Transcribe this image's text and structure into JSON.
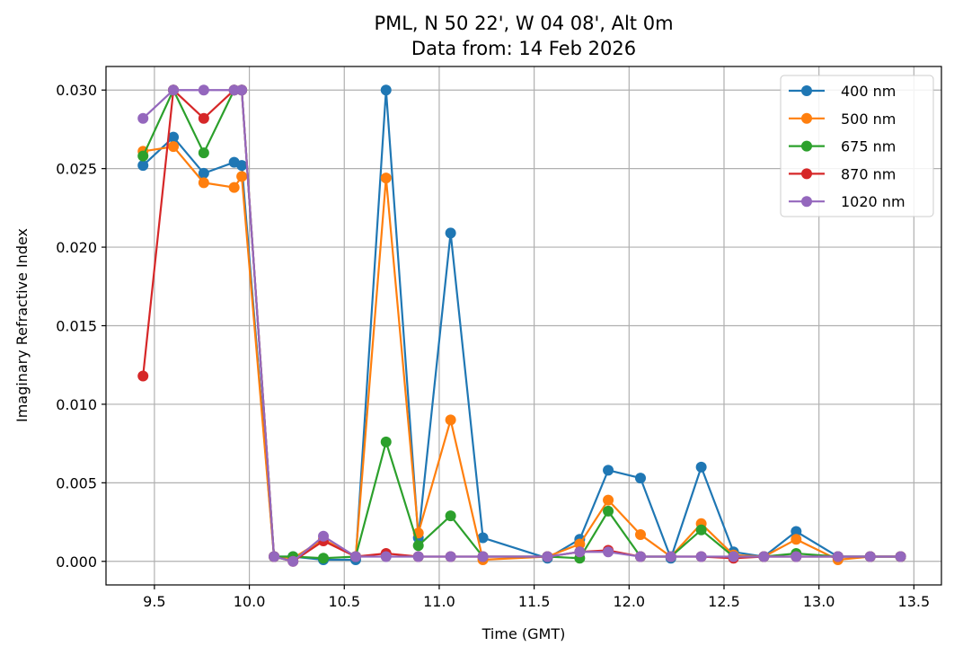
{
  "chart_data": {
    "type": "line",
    "title": "PML, N 50 22', W 04 08', Alt 0m",
    "subtitle": "Data from: 14 Feb 2026",
    "xlabel": "Time (GMT)",
    "ylabel": "Imaginary Refractive Index",
    "xlim": [
      9.245,
      13.645
    ],
    "ylim": [
      -0.0015,
      0.0315
    ],
    "xticks": [
      "9.5",
      "10.0",
      "10.5",
      "11.0",
      "11.5",
      "12.0",
      "12.5",
      "13.0",
      "13.5"
    ],
    "yticks": [
      "0.000",
      "0.005",
      "0.010",
      "0.015",
      "0.020",
      "0.025",
      "0.030"
    ],
    "grid": true,
    "legend_position": "top-right",
    "series": [
      {
        "name": "400 nm",
        "color": "#1f77b4",
        "points": [
          [
            9.44,
            0.0252
          ],
          [
            9.6,
            0.027
          ],
          [
            9.76,
            0.0247
          ],
          [
            9.92,
            0.0254
          ],
          [
            9.96,
            0.0252
          ],
          [
            10.13,
            0.0003
          ],
          [
            10.23,
            0.0003
          ],
          [
            10.39,
            0.0001
          ],
          [
            10.56,
            0.0001
          ],
          [
            10.72,
            0.03
          ],
          [
            10.89,
            0.0015
          ],
          [
            11.06,
            0.0209
          ],
          [
            11.23,
            0.0015
          ],
          [
            11.57,
            0.0002
          ],
          [
            11.74,
            0.0014
          ],
          [
            11.89,
            0.0058
          ],
          [
            12.06,
            0.0053
          ],
          [
            12.22,
            0.0002
          ],
          [
            12.38,
            0.006
          ],
          [
            12.55,
            0.0006
          ],
          [
            12.71,
            0.0003
          ],
          [
            12.88,
            0.0019
          ],
          [
            13.1,
            0.0003
          ],
          [
            13.27,
            0.0003
          ],
          [
            13.43,
            0.0003
          ]
        ]
      },
      {
        "name": "500 nm",
        "color": "#ff7f0e",
        "points": [
          [
            9.44,
            0.0261
          ],
          [
            9.6,
            0.0264
          ],
          [
            9.76,
            0.0241
          ],
          [
            9.92,
            0.0238
          ],
          [
            9.96,
            0.0245
          ],
          [
            10.13,
            0.0003
          ],
          [
            10.23,
            0.0002
          ],
          [
            10.39,
            0.0014
          ],
          [
            10.56,
            0.0003
          ],
          [
            10.72,
            0.0244
          ],
          [
            10.89,
            0.0018
          ],
          [
            11.06,
            0.009
          ],
          [
            11.23,
            0.0001
          ],
          [
            11.57,
            0.0003
          ],
          [
            11.74,
            0.0011
          ],
          [
            11.89,
            0.0039
          ],
          [
            12.06,
            0.0017
          ],
          [
            12.22,
            0.0003
          ],
          [
            12.38,
            0.0024
          ],
          [
            12.55,
            0.0004
          ],
          [
            12.71,
            0.0003
          ],
          [
            12.88,
            0.0014
          ],
          [
            13.1,
            0.0001
          ],
          [
            13.27,
            0.0003
          ],
          [
            13.43,
            0.0003
          ]
        ]
      },
      {
        "name": "675 nm",
        "color": "#2ca02c",
        "points": [
          [
            9.44,
            0.0258
          ],
          [
            9.6,
            0.03
          ],
          [
            9.76,
            0.026
          ],
          [
            9.92,
            0.03
          ],
          [
            9.96,
            0.03
          ],
          [
            10.13,
            0.0003
          ],
          [
            10.23,
            0.0003
          ],
          [
            10.39,
            0.0002
          ],
          [
            10.56,
            0.0003
          ],
          [
            10.72,
            0.0076
          ],
          [
            10.89,
            0.001
          ],
          [
            11.06,
            0.0029
          ],
          [
            11.23,
            0.0003
          ],
          [
            11.57,
            0.0003
          ],
          [
            11.74,
            0.0002
          ],
          [
            11.89,
            0.0032
          ],
          [
            12.06,
            0.0003
          ],
          [
            12.22,
            0.0003
          ],
          [
            12.38,
            0.002
          ],
          [
            12.55,
            0.0003
          ],
          [
            12.71,
            0.0003
          ],
          [
            12.88,
            0.0005
          ],
          [
            13.1,
            0.0003
          ],
          [
            13.27,
            0.0003
          ],
          [
            13.43,
            0.0003
          ]
        ]
      },
      {
        "name": "870 nm",
        "color": "#d62728",
        "points": [
          [
            9.44,
            0.0118
          ],
          [
            9.6,
            0.03
          ],
          [
            9.76,
            0.0282
          ],
          [
            9.92,
            0.03
          ],
          [
            9.96,
            0.03
          ],
          [
            10.13,
            0.0003
          ],
          [
            10.23,
            0.0
          ],
          [
            10.39,
            0.0013
          ],
          [
            10.56,
            0.0003
          ],
          [
            10.72,
            0.0005
          ],
          [
            10.89,
            0.0003
          ],
          [
            11.06,
            0.0003
          ],
          [
            11.23,
            0.0003
          ],
          [
            11.57,
            0.0003
          ],
          [
            11.74,
            0.0006
          ],
          [
            11.89,
            0.0007
          ],
          [
            12.06,
            0.0003
          ],
          [
            12.22,
            0.0003
          ],
          [
            12.38,
            0.0003
          ],
          [
            12.55,
            0.0002
          ],
          [
            12.71,
            0.0003
          ],
          [
            12.88,
            0.0003
          ],
          [
            13.1,
            0.0003
          ],
          [
            13.27,
            0.0003
          ],
          [
            13.43,
            0.0003
          ]
        ]
      },
      {
        "name": "1020 nm",
        "color": "#9467bd",
        "points": [
          [
            9.44,
            0.0282
          ],
          [
            9.6,
            0.03
          ],
          [
            9.76,
            0.03
          ],
          [
            9.92,
            0.03
          ],
          [
            9.96,
            0.03
          ],
          [
            10.13,
            0.0003
          ],
          [
            10.23,
            0.0
          ],
          [
            10.39,
            0.0016
          ],
          [
            10.56,
            0.0003
          ],
          [
            10.72,
            0.0003
          ],
          [
            10.89,
            0.0003
          ],
          [
            11.06,
            0.0003
          ],
          [
            11.23,
            0.0003
          ],
          [
            11.57,
            0.0003
          ],
          [
            11.74,
            0.0006
          ],
          [
            11.89,
            0.0006
          ],
          [
            12.06,
            0.0003
          ],
          [
            12.22,
            0.0003
          ],
          [
            12.38,
            0.0003
          ],
          [
            12.55,
            0.0003
          ],
          [
            12.71,
            0.0003
          ],
          [
            12.88,
            0.0003
          ],
          [
            13.1,
            0.0003
          ],
          [
            13.27,
            0.0003
          ],
          [
            13.43,
            0.0003
          ]
        ]
      }
    ]
  }
}
